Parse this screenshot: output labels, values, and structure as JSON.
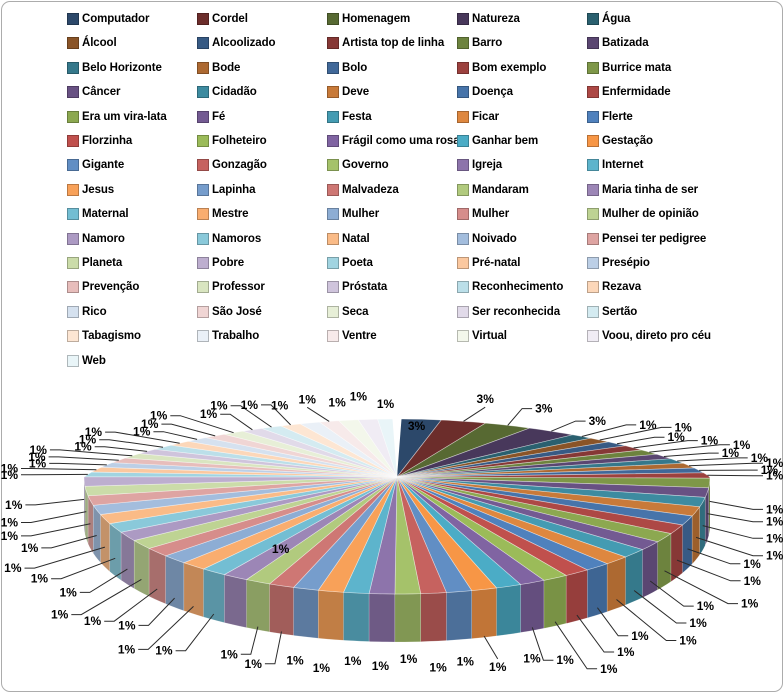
{
  "chart_data": {
    "type": "pie",
    "style": "3d-pie",
    "title": "",
    "legend_position": "top",
    "legend_columns": 5,
    "palette": {
      "base_colors": [
        "#4F81BD",
        "#C0504D",
        "#9BBB59",
        "#8064A2",
        "#4BACC6",
        "#F79646"
      ],
      "cycle_shades": [
        0.56,
        0.7,
        0.81,
        0.9
      ],
      "cycle_tints": [
        0.1,
        0.22,
        0.35,
        0.48,
        0.62,
        0.76,
        0.88
      ],
      "wall_darken": 0.78,
      "label_color": "#000000",
      "leader_color": "#2b2b2b",
      "background": "#FFFFFF",
      "border_color": "#ACACAC"
    },
    "inside_label_indices": [
      0,
      39
    ],
    "items": [
      {
        "label": "Computador",
        "value": 3,
        "pct": "3%"
      },
      {
        "label": "Cordel",
        "value": 3,
        "pct": "3%"
      },
      {
        "label": "Homenagem",
        "value": 3,
        "pct": "3%"
      },
      {
        "label": "Natureza",
        "value": 3,
        "pct": "3%"
      },
      {
        "label": "Água",
        "value": 1.31,
        "pct": "1%"
      },
      {
        "label": "Álcool",
        "value": 1.31,
        "pct": "1%"
      },
      {
        "label": "Alcoolizado",
        "value": 1.31,
        "pct": "1%"
      },
      {
        "label": "Artista top de linha",
        "value": 1.31,
        "pct": "1%"
      },
      {
        "label": "Barro",
        "value": 1.31,
        "pct": "1%"
      },
      {
        "label": "Batizada",
        "value": 1.31,
        "pct": "1%"
      },
      {
        "label": "Belo Horizonte",
        "value": 1.31,
        "pct": "1%"
      },
      {
        "label": "Bode",
        "value": 1.31,
        "pct": "1%"
      },
      {
        "label": "Bolo",
        "value": 1.31,
        "pct": "1%"
      },
      {
        "label": "Bom exemplo",
        "value": 1.31,
        "pct": "1%"
      },
      {
        "label": "Burrice mata",
        "value": 1.31,
        "pct": "1%"
      },
      {
        "label": "Câncer",
        "value": 1.31,
        "pct": "1%"
      },
      {
        "label": "Cidadão",
        "value": 1.31,
        "pct": "1%"
      },
      {
        "label": "Deve",
        "value": 1.31,
        "pct": "1%"
      },
      {
        "label": "Doença",
        "value": 1.31,
        "pct": "1%"
      },
      {
        "label": "Enfermidade",
        "value": 1.31,
        "pct": "1%"
      },
      {
        "label": "Era um vira-lata",
        "value": 1.31,
        "pct": "1%"
      },
      {
        "label": "Fé",
        "value": 1.31,
        "pct": "1%"
      },
      {
        "label": "Festa",
        "value": 1.31,
        "pct": "1%"
      },
      {
        "label": "Ficar",
        "value": 1.31,
        "pct": "1%"
      },
      {
        "label": "Flerte",
        "value": 1.31,
        "pct": "1%"
      },
      {
        "label": "Florzinha",
        "value": 1.31,
        "pct": "1%"
      },
      {
        "label": "Folheteiro",
        "value": 1.31,
        "pct": "1%"
      },
      {
        "label": "Frágil como uma rosa",
        "value": 1.31,
        "pct": "1%"
      },
      {
        "label": "Ganhar bem",
        "value": 1.31,
        "pct": "1%"
      },
      {
        "label": "Gestação",
        "value": 1.31,
        "pct": "1%"
      },
      {
        "label": "Gigante",
        "value": 1.31,
        "pct": "1%"
      },
      {
        "label": "Gonzagão",
        "value": 1.31,
        "pct": "1%"
      },
      {
        "label": "Governo",
        "value": 1.31,
        "pct": "1%"
      },
      {
        "label": "Igreja",
        "value": 1.31,
        "pct": "1%"
      },
      {
        "label": "Internet",
        "value": 1.31,
        "pct": "1%"
      },
      {
        "label": "Jesus",
        "value": 1.31,
        "pct": "1%"
      },
      {
        "label": "Lapinha",
        "value": 1.31,
        "pct": "1%"
      },
      {
        "label": "Malvadeza",
        "value": 1.31,
        "pct": "1%"
      },
      {
        "label": "Mandaram",
        "value": 1.31,
        "pct": "1%"
      },
      {
        "label": "Maria tinha de ser",
        "value": 1.31,
        "pct": "1%"
      },
      {
        "label": "Maternal",
        "value": 1.31,
        "pct": "1%"
      },
      {
        "label": "Mestre",
        "value": 1.31,
        "pct": "1%"
      },
      {
        "label": "Mulher",
        "value": 1.31,
        "pct": "1%"
      },
      {
        "label": "Mulher",
        "value": 1.31,
        "pct": "1%"
      },
      {
        "label": "Mulher de opinião",
        "value": 1.31,
        "pct": "1%"
      },
      {
        "label": "Namoro",
        "value": 1.31,
        "pct": "1%"
      },
      {
        "label": "Namoros",
        "value": 1.31,
        "pct": "1%"
      },
      {
        "label": "Natal",
        "value": 1.31,
        "pct": "1%"
      },
      {
        "label": "Noivado",
        "value": 1.31,
        "pct": "1%"
      },
      {
        "label": "Pensei ter pedigree",
        "value": 1.31,
        "pct": "1%"
      },
      {
        "label": "Planeta",
        "value": 1.31,
        "pct": "1%"
      },
      {
        "label": "Pobre",
        "value": 1.31,
        "pct": "1%"
      },
      {
        "label": "Poeta",
        "value": 1.31,
        "pct": "1%"
      },
      {
        "label": "Pré-natal",
        "value": 1.31,
        "pct": "1%"
      },
      {
        "label": "Presépio",
        "value": 1.31,
        "pct": "1%"
      },
      {
        "label": "Prevenção",
        "value": 1.31,
        "pct": "1%"
      },
      {
        "label": "Professor",
        "value": 1.31,
        "pct": "1%"
      },
      {
        "label": "Próstata",
        "value": 1.31,
        "pct": "1%"
      },
      {
        "label": "Reconhecimento",
        "value": 1.31,
        "pct": "1%"
      },
      {
        "label": "Rezava",
        "value": 1.31,
        "pct": "1%"
      },
      {
        "label": "Rico",
        "value": 1.31,
        "pct": "1%"
      },
      {
        "label": "São José",
        "value": 1.31,
        "pct": "1%"
      },
      {
        "label": "Seca",
        "value": 1.31,
        "pct": "1%"
      },
      {
        "label": "Ser reconhecida",
        "value": 1.31,
        "pct": "1%"
      },
      {
        "label": "Sertão",
        "value": 1.31,
        "pct": "1%"
      },
      {
        "label": "Tabagismo",
        "value": 1.31,
        "pct": "1%"
      },
      {
        "label": "Trabalho",
        "value": 1.31,
        "pct": "1%"
      },
      {
        "label": "Ventre",
        "value": 1.31,
        "pct": "1%"
      },
      {
        "label": "Virtual",
        "value": 1.31,
        "pct": "1%"
      },
      {
        "label": "Voou, direto pro céu",
        "value": 1.31,
        "pct": "1%"
      },
      {
        "label": "Web",
        "value": 1.31,
        "pct": "1%"
      }
    ]
  }
}
